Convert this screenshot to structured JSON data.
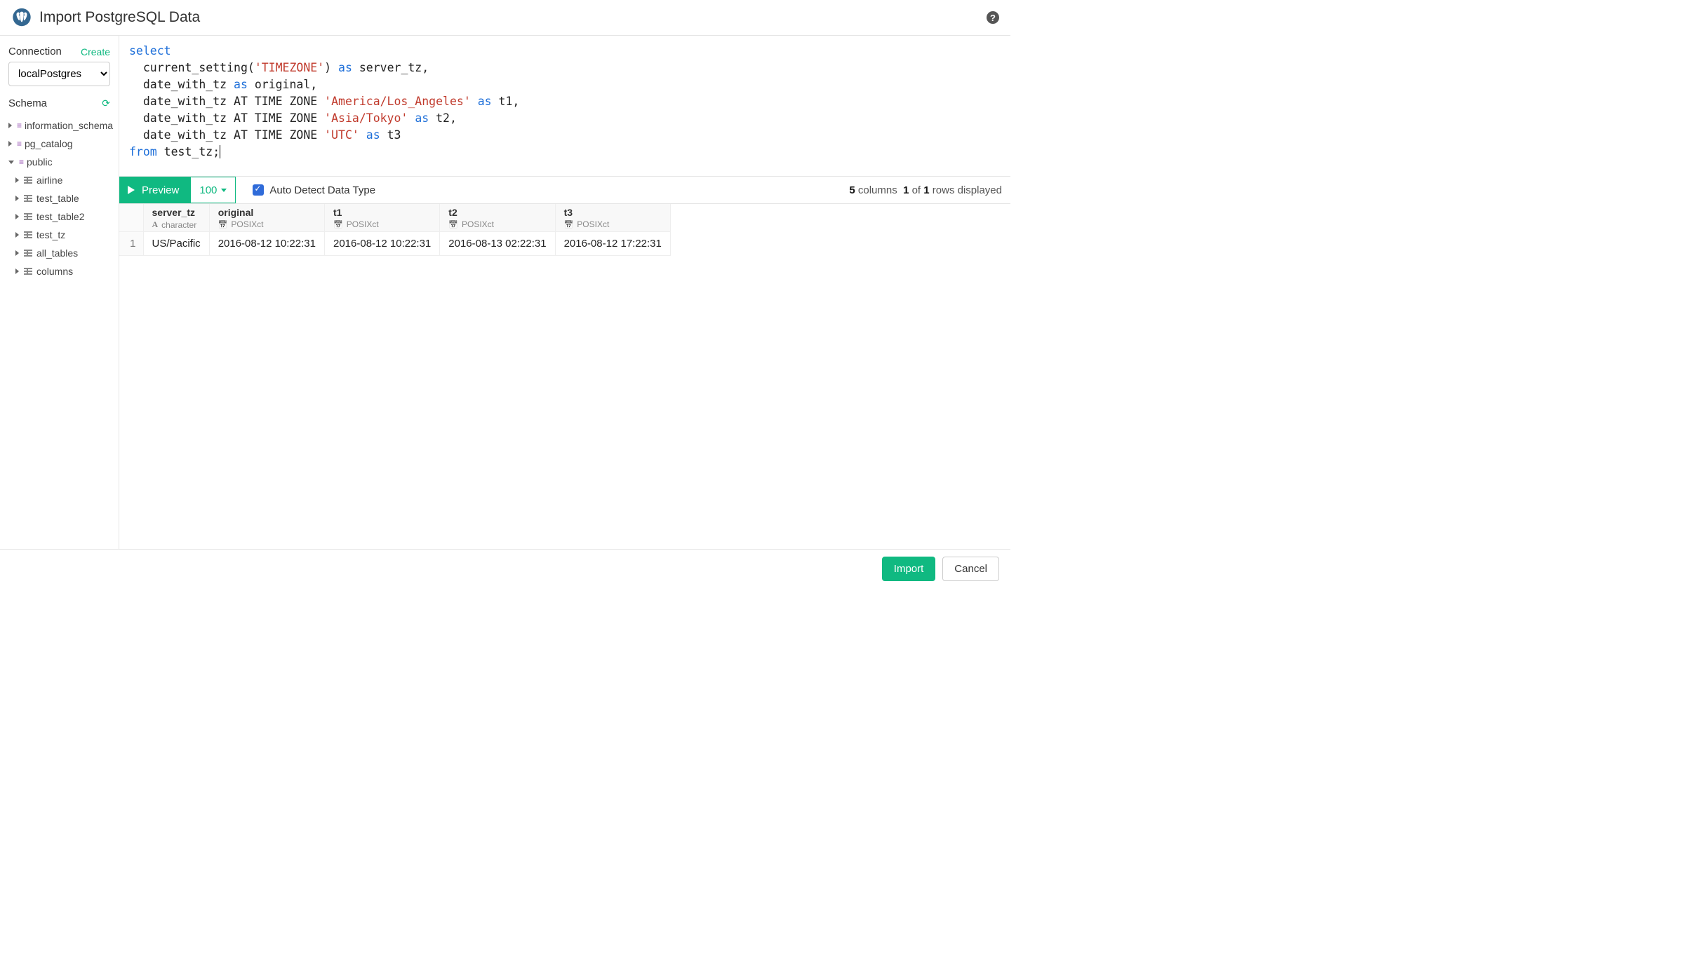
{
  "colors": {
    "accent": "#10b981",
    "keyword": "#1e6fd9",
    "string": "#c0392b",
    "schema_icon": "#9b59b6",
    "border": "#e5e5e5"
  },
  "header": {
    "title": "Import PostgreSQL Data"
  },
  "sidebar": {
    "connection_label": "Connection",
    "create_label": "Create",
    "connection_selected": "localPostgres",
    "schema_label": "Schema",
    "schemas": [
      {
        "name": "information_schema",
        "expanded": false
      },
      {
        "name": "pg_catalog",
        "expanded": false
      },
      {
        "name": "public",
        "expanded": true
      }
    ],
    "tables": [
      {
        "name": "airline"
      },
      {
        "name": "test_table"
      },
      {
        "name": "test_table2"
      },
      {
        "name": "test_tz"
      },
      {
        "name": "all_tables"
      },
      {
        "name": "columns"
      }
    ]
  },
  "sql": {
    "tokens": [
      {
        "t": "kw",
        "v": "select"
      },
      {
        "t": "tx",
        "v": "\n  current_setting("
      },
      {
        "t": "str",
        "v": "'TIMEZONE'"
      },
      {
        "t": "tx",
        "v": ") "
      },
      {
        "t": "kw",
        "v": "as"
      },
      {
        "t": "tx",
        "v": " server_tz,\n  date_with_tz "
      },
      {
        "t": "kw",
        "v": "as"
      },
      {
        "t": "tx",
        "v": " original,\n  date_with_tz AT TIME ZONE "
      },
      {
        "t": "str",
        "v": "'America/Los_Angeles'"
      },
      {
        "t": "tx",
        "v": " "
      },
      {
        "t": "kw",
        "v": "as"
      },
      {
        "t": "tx",
        "v": " t1,\n  date_with_tz AT TIME ZONE "
      },
      {
        "t": "str",
        "v": "'Asia/Tokyo'"
      },
      {
        "t": "tx",
        "v": " "
      },
      {
        "t": "kw",
        "v": "as"
      },
      {
        "t": "tx",
        "v": " t2,\n  date_with_tz AT TIME ZONE "
      },
      {
        "t": "str",
        "v": "'UTC'"
      },
      {
        "t": "tx",
        "v": " "
      },
      {
        "t": "kw",
        "v": "as"
      },
      {
        "t": "tx",
        "v": " t3\n"
      },
      {
        "t": "kw",
        "v": "from"
      },
      {
        "t": "tx",
        "v": " test_tz;"
      }
    ]
  },
  "toolbar": {
    "preview_label": "Preview",
    "limit_value": "100",
    "auto_detect_label": "Auto Detect Data Type",
    "auto_detect_checked": true
  },
  "status": {
    "columns": 5,
    "columns_word": "columns",
    "rows_shown": 1,
    "of_word": "of",
    "rows_total": 1,
    "rows_word": "rows displayed"
  },
  "result": {
    "columns": [
      {
        "name": "server_tz",
        "type_label": "character",
        "type": "char"
      },
      {
        "name": "original",
        "type_label": "POSIXct",
        "type": "date"
      },
      {
        "name": "t1",
        "type_label": "POSIXct",
        "type": "date"
      },
      {
        "name": "t2",
        "type_label": "POSIXct",
        "type": "date"
      },
      {
        "name": "t3",
        "type_label": "POSIXct",
        "type": "date"
      }
    ],
    "rows": [
      [
        "US/Pacific",
        "2016-08-12 10:22:31",
        "2016-08-12 10:22:31",
        "2016-08-13 02:22:31",
        "2016-08-12 17:22:31"
      ]
    ]
  },
  "footer": {
    "import_label": "Import",
    "cancel_label": "Cancel"
  }
}
